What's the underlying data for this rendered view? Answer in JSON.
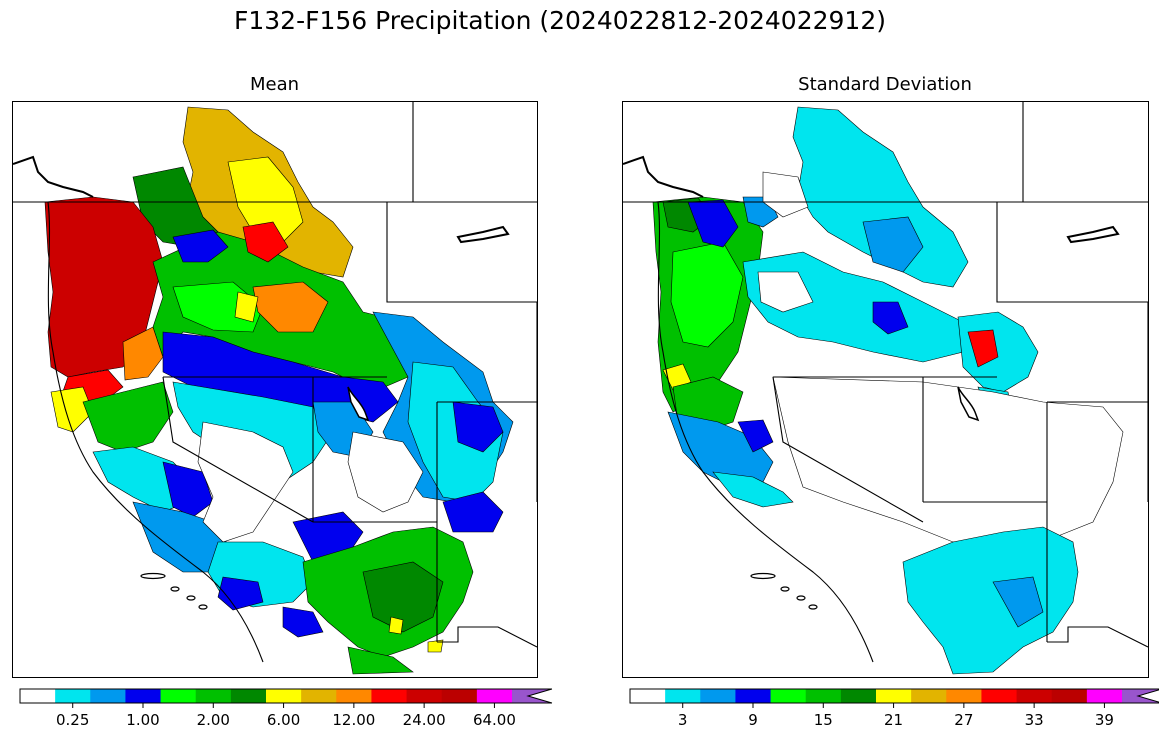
{
  "figure": {
    "title": "F132-F156 Precipitation (2024022812-2024022912)"
  },
  "panels": [
    {
      "id": "mean",
      "title": "Mean",
      "colorbar": {
        "colors": [
          "#ffffff",
          "#00e5ee",
          "#0099ee",
          "#0000ee",
          "#00ff00",
          "#00c000",
          "#008800",
          "#ffff00",
          "#e2b400",
          "#ff8800",
          "#ff0000",
          "#cc0000",
          "#bb0000",
          "#ff00ff",
          "#9955cc"
        ],
        "extend": "max",
        "tick_labels": [
          "0.25",
          "1.00",
          "2.00",
          "6.00",
          "12.00",
          "24.00",
          "64.00"
        ],
        "tick_boundary_index": [
          1,
          3,
          5,
          7,
          9,
          11,
          13
        ]
      }
    },
    {
      "id": "sd",
      "title": "Standard Deviation",
      "colorbar": {
        "colors": [
          "#ffffff",
          "#00e5ee",
          "#0099ee",
          "#0000ee",
          "#00ff00",
          "#00c000",
          "#008800",
          "#ffff00",
          "#e2b400",
          "#ff8800",
          "#ff0000",
          "#cc0000",
          "#bb0000",
          "#ff00ff",
          "#9955cc"
        ],
        "extend": "max",
        "tick_labels": [
          "3",
          "9",
          "15",
          "21",
          "27",
          "33",
          "39"
        ],
        "tick_boundary_index": [
          1,
          3,
          5,
          7,
          9,
          11,
          13
        ]
      }
    }
  ]
}
